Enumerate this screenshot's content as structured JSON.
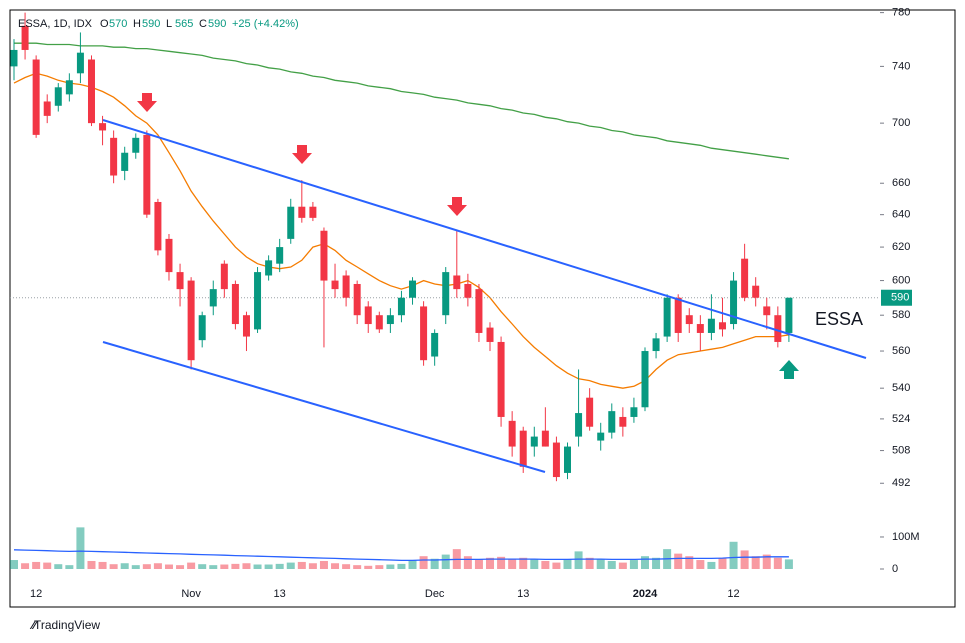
{
  "chart_data": {
    "type": "candlestick",
    "symbol_label": "ESSA, 1D, IDX",
    "ohlc_letters": [
      "O",
      "H",
      "L",
      "C"
    ],
    "change_label": "+25 (+4.42%)",
    "annotation": "ESSA",
    "categories": [
      null,
      null,
      "12",
      null,
      null,
      null,
      null,
      null,
      null,
      null,
      null,
      null,
      null,
      null,
      null,
      null,
      "Nov",
      null,
      null,
      null,
      null,
      null,
      null,
      null,
      "13",
      null,
      null,
      null,
      null,
      null,
      null,
      null,
      null,
      null,
      null,
      null,
      null,
      null,
      "Dec",
      null,
      null,
      null,
      null,
      null,
      null,
      null,
      "13",
      null,
      null,
      null,
      null,
      null,
      null,
      null,
      null,
      null,
      null,
      "2024",
      null,
      null,
      null,
      null,
      null,
      null,
      null,
      "12",
      null,
      null,
      null,
      null,
      null
    ],
    "open": [
      740,
      770,
      745,
      715,
      712,
      720,
      735,
      745,
      700,
      690,
      668,
      680,
      692,
      648,
      625,
      605,
      600,
      566,
      585,
      610,
      598,
      580,
      572,
      603,
      610,
      625,
      645,
      645,
      630,
      600,
      603,
      598,
      585,
      580,
      575,
      580,
      590,
      585,
      557,
      580,
      603,
      598,
      595,
      573,
      565,
      523,
      518,
      510,
      518,
      512,
      497,
      515,
      535,
      513,
      517,
      525,
      525,
      530,
      560,
      568,
      590,
      580,
      575,
      570,
      576,
      575,
      613,
      597,
      585,
      580,
      570
    ],
    "high": [
      760,
      780,
      748,
      720,
      728,
      735,
      765,
      748,
      705,
      695,
      684,
      693,
      695,
      650,
      628,
      610,
      602,
      582,
      600,
      612,
      600,
      582,
      608,
      615,
      625,
      650,
      662,
      648,
      632,
      610,
      606,
      600,
      588,
      582,
      584,
      594,
      602,
      588,
      572,
      608,
      630,
      604,
      598,
      576,
      568,
      528,
      520,
      520,
      530,
      515,
      512,
      550,
      540,
      522,
      532,
      530,
      535,
      562,
      570,
      592,
      592,
      584,
      580,
      592,
      590,
      605,
      622,
      602,
      590,
      585,
      590
    ],
    "low": [
      730,
      745,
      690,
      700,
      708,
      715,
      728,
      698,
      685,
      660,
      662,
      676,
      638,
      615,
      600,
      585,
      550,
      562,
      580,
      590,
      572,
      560,
      570,
      600,
      605,
      622,
      635,
      636,
      562,
      590,
      585,
      575,
      570,
      570,
      570,
      576,
      586,
      552,
      552,
      575,
      590,
      585,
      565,
      560,
      520,
      505,
      497,
      505,
      510,
      493,
      494,
      510,
      518,
      508,
      514,
      515,
      522,
      528,
      556,
      565,
      565,
      570,
      560,
      566,
      568,
      572,
      588,
      585,
      572,
      562,
      565
    ],
    "close": [
      752,
      752,
      692,
      705,
      725,
      730,
      750,
      700,
      695,
      665,
      680,
      690,
      640,
      618,
      605,
      595,
      555,
      580,
      595,
      595,
      575,
      568,
      605,
      612,
      620,
      645,
      638,
      638,
      600,
      595,
      590,
      580,
      575,
      572,
      580,
      590,
      600,
      555,
      570,
      605,
      595,
      590,
      570,
      565,
      525,
      510,
      500,
      515,
      510,
      495,
      510,
      527,
      520,
      517,
      528,
      520,
      530,
      560,
      567,
      590,
      570,
      575,
      570,
      578,
      572,
      600,
      590,
      590,
      580,
      565,
      590
    ],
    "up_color": "#089981",
    "down_color": "#f23645",
    "log": true,
    "ylim": [
      484,
      782
    ],
    "yticks": [
      492,
      508,
      524,
      540,
      560,
      580,
      600,
      620,
      640,
      660,
      700,
      740,
      780
    ],
    "moving_averages": [
      {
        "color": "#f57c00",
        "values": [
          728,
          732,
          735,
          733,
          730,
          728,
          727,
          725,
          722,
          718,
          712,
          705,
          700,
          692,
          680,
          668,
          655,
          645,
          636,
          628,
          620,
          614,
          610,
          608,
          607,
          608,
          612,
          620,
          622,
          618,
          612,
          608,
          604,
          600,
          597,
          595,
          597,
          600,
          598,
          597,
          598,
          600,
          596,
          590,
          582,
          575,
          568,
          562,
          557,
          552,
          548,
          545,
          544,
          542,
          541,
          540,
          541,
          544,
          550,
          555,
          558,
          559,
          560,
          561,
          562,
          564,
          566,
          568,
          568,
          568,
          569
        ]
      },
      {
        "color": "#43a047",
        "values": [
          757,
          757,
          757,
          756,
          756,
          756,
          755,
          755,
          755,
          754,
          754,
          753,
          753,
          752,
          751,
          750,
          749,
          748,
          746,
          745,
          744,
          742,
          741,
          739,
          738,
          736,
          735,
          733,
          732,
          730,
          729,
          728,
          726,
          725,
          724,
          722,
          721,
          720,
          718,
          717,
          716,
          714,
          713,
          712,
          710,
          709,
          707,
          706,
          704,
          703,
          701,
          700,
          698,
          697,
          695,
          694,
          692,
          691,
          690,
          688,
          687,
          686,
          685,
          683,
          682,
          681,
          680,
          679,
          678,
          677,
          676
        ]
      }
    ],
    "volume": {
      "values": [
        28000000.0,
        18000000.0,
        22000000.0,
        20000000.0,
        15000000.0,
        12000000.0,
        130000000.0,
        25000000.0,
        22000000.0,
        15000000.0,
        18000000.0,
        12000000.0,
        15000000.0,
        18000000.0,
        14000000.0,
        12000000.0,
        20000000.0,
        15000000.0,
        12000000.0,
        14000000.0,
        16000000.0,
        18000000.0,
        14000000.0,
        14000000.0,
        16000000.0,
        20000000.0,
        22000000.0,
        18000000.0,
        25000000.0,
        18000000.0,
        15000000.0,
        12000000.0,
        10000000.0,
        12000000.0,
        14000000.0,
        16000000.0,
        28000000.0,
        40000000.0,
        32000000.0,
        45000000.0,
        62000000.0,
        40000000.0,
        30000000.0,
        35000000.0,
        38000000.0,
        32000000.0,
        35000000.0,
        30000000.0,
        25000000.0,
        20000000.0,
        30000000.0,
        55000000.0,
        35000000.0,
        30000000.0,
        25000000.0,
        20000000.0,
        28000000.0,
        40000000.0,
        35000000.0,
        62000000.0,
        48000000.0,
        40000000.0,
        28000000.0,
        22000000.0,
        35000000.0,
        85000000.0,
        58000000.0,
        40000000.0,
        45000000.0,
        35000000.0,
        30000000.0
      ],
      "ma_values": [
        60000000.0,
        59000000.0,
        58000000.0,
        57000000.0,
        56000000.0,
        55000000.0,
        56000000.0,
        55000000.0,
        54000000.0,
        53000000.0,
        52000000.0,
        51000000.0,
        50000000.0,
        49000000.0,
        48000000.0,
        47000000.0,
        46000000.0,
        45000000.0,
        44000000.0,
        43000000.0,
        42000000.0,
        41000000.0,
        40000000.0,
        39000000.0,
        38000000.0,
        37000000.0,
        36000000.0,
        35000000.0,
        34000000.0,
        33000000.0,
        32000000.0,
        31000000.0,
        30000000.0,
        29000000.0,
        28000000.0,
        27000000.0,
        27000000.0,
        28000000.0,
        28000000.0,
        29000000.0,
        30000000.0,
        30000000.0,
        30000000.0,
        31000000.0,
        31000000.0,
        31000000.0,
        31000000.0,
        31000000.0,
        30000000.0,
        30000000.0,
        30000000.0,
        31000000.0,
        31000000.0,
        31000000.0,
        30000000.0,
        30000000.0,
        30000000.0,
        31000000.0,
        31000000.0,
        32000000.0,
        33000000.0,
        33000000.0,
        33000000.0,
        33000000.0,
        34000000.0,
        36000000.0,
        37000000.0,
        37000000.0,
        38000000.0,
        38000000.0,
        38000000.0
      ],
      "ma_color": "#2962ff",
      "ylim": [
        0,
        178000000.0
      ],
      "yticks": [
        0,
        {
          "value": 100000000.0,
          "label": "100M"
        }
      ]
    }
  },
  "footer": {
    "brand": "TradingView"
  }
}
